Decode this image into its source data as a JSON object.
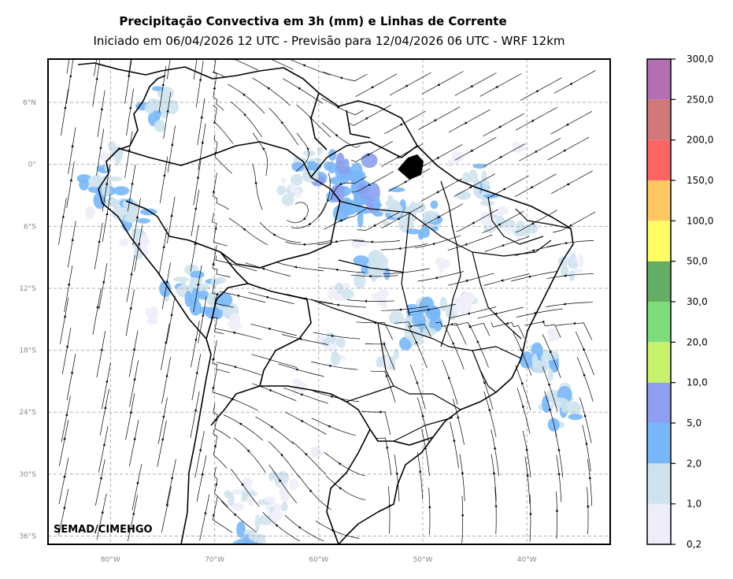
{
  "title": "Precipitação Convectiva em 3h (mm) e Linhas de Corrente",
  "subtitle": "Iniciado em 06/04/2026 12 UTC - Previsão para 12/04/2026 06 UTC - WRF 12km",
  "credit": "SEMAD/CIMEHGO",
  "map": {
    "lon_range": [
      -86,
      -32
    ],
    "lat_range": [
      -36.8,
      10.2
    ],
    "lat_ticks": [
      {
        "value": 6,
        "label": "6°N"
      },
      {
        "value": 0,
        "label": "0°"
      },
      {
        "value": -6,
        "label": "6°S"
      },
      {
        "value": -12,
        "label": "12°S"
      },
      {
        "value": -18,
        "label": "18°S"
      },
      {
        "value": -24,
        "label": "24°S"
      },
      {
        "value": -30,
        "label": "30°S"
      },
      {
        "value": -36,
        "label": "36°S"
      }
    ],
    "lon_ticks": [
      {
        "value": -80,
        "label": "80°W"
      },
      {
        "value": -70,
        "label": "70°W"
      },
      {
        "value": -60,
        "label": "60°W"
      },
      {
        "value": -50,
        "label": "50°W"
      },
      {
        "value": -40,
        "label": "40°W"
      }
    ],
    "grid": true
  },
  "colorbar": {
    "orientation": "vertical",
    "bounds": [
      "0,2",
      "1,0",
      "2,0",
      "5,0",
      "10,0",
      "20,0",
      "30,0",
      "50,0",
      "100,0",
      "150,0",
      "200,0",
      "250,0",
      "300,0"
    ],
    "colors": [
      "#eeeefa",
      "#cfe3ee",
      "#78b8fa",
      "#8c9ff0",
      "#c8f26e",
      "#7ddc7b",
      "#64ad64",
      "#ffff64",
      "#ffc864",
      "#ff6464",
      "#d27878",
      "#b46eb4"
    ]
  },
  "precip_cells": [
    {
      "lon": -57.5,
      "lat": -0.8,
      "level": 3
    },
    {
      "lon": -55.8,
      "lat": -3.5,
      "level": 3
    },
    {
      "lon": -60.5,
      "lat": -0.5,
      "level": 2
    },
    {
      "lon": -52.5,
      "lat": -4.2,
      "level": 2
    },
    {
      "lon": -49.5,
      "lat": -5.8,
      "level": 2
    },
    {
      "lon": -51.0,
      "lat": -15.5,
      "level": 2
    },
    {
      "lon": -49.2,
      "lat": -14.2,
      "level": 2
    },
    {
      "lon": -80.8,
      "lat": -2.0,
      "level": 2
    },
    {
      "lon": -78.2,
      "lat": -4.2,
      "level": 2
    },
    {
      "lon": -73.0,
      "lat": -11.8,
      "level": 2
    },
    {
      "lon": -70.0,
      "lat": -13.0,
      "level": 2
    },
    {
      "lon": -36.5,
      "lat": -23.5,
      "level": 2
    },
    {
      "lon": -39.0,
      "lat": -19.3,
      "level": 2
    },
    {
      "lon": -44.5,
      "lat": -2.2,
      "level": 2
    },
    {
      "lon": -66.5,
      "lat": -36.4,
      "level": 2
    },
    {
      "lon": -75.0,
      "lat": 5.5,
      "level": 2
    },
    {
      "lon": -55.0,
      "lat": -10.0,
      "level": 2
    },
    {
      "lon": -35.8,
      "lat": -9.5,
      "level": 1
    },
    {
      "lon": -63.5,
      "lat": -30.8,
      "level": 1
    },
    {
      "lon": -67.5,
      "lat": -32.0,
      "level": 1
    },
    {
      "lon": -64.5,
      "lat": -33.5,
      "level": 1
    },
    {
      "lon": -58.0,
      "lat": -12.0,
      "level": 1
    },
    {
      "lon": -62.5,
      "lat": -2.5,
      "level": 1
    },
    {
      "lon": -46.0,
      "lat": -13.0,
      "level": 1
    },
    {
      "lon": -79.5,
      "lat": 0.5,
      "level": 1
    },
    {
      "lon": -43.0,
      "lat": -5.5,
      "level": 1
    },
    {
      "lon": -40.5,
      "lat": -6.5,
      "level": 1
    },
    {
      "lon": -77.5,
      "lat": -7.5,
      "level": 1
    },
    {
      "lon": -53.0,
      "lat": -18.5,
      "level": 1
    },
    {
      "lon": -58.5,
      "lat": -17.5,
      "level": 1
    },
    {
      "lon": -62.0,
      "lat": -21.5,
      "level": 0
    },
    {
      "lon": -68.0,
      "lat": -15.5,
      "level": 0
    },
    {
      "lon": -41.0,
      "lat": 1.5,
      "level": 0
    },
    {
      "lon": -56.0,
      "lat": -7.5,
      "level": 0
    },
    {
      "lon": -48.0,
      "lat": -9.5,
      "level": 0
    },
    {
      "lon": -60.0,
      "lat": -28.0,
      "level": 0
    },
    {
      "lon": -54.0,
      "lat": -13.0,
      "level": 0
    },
    {
      "lon": -82.0,
      "lat": -4.5,
      "level": 0
    },
    {
      "lon": -76.0,
      "lat": -14.5,
      "level": 0
    },
    {
      "lon": -37.5,
      "lat": -16.5,
      "level": 0
    },
    {
      "lon": -47.0,
      "lat": 0.5,
      "level": 0
    }
  ]
}
